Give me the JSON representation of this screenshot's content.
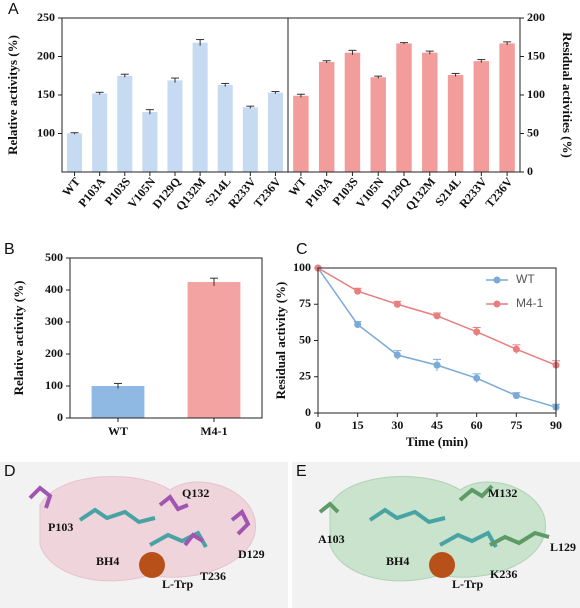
{
  "chart_data": [
    {
      "type": "bar",
      "ylabel": "Relative activitys (%)",
      "y_axis_side": "left",
      "categories": [
        "WT",
        "P103A",
        "P103S",
        "V105N",
        "D129Q",
        "Q132M",
        "S214L",
        "R233V",
        "T236V"
      ],
      "values": [
        100,
        152,
        175,
        128,
        169,
        218,
        163,
        134,
        153
      ],
      "errors": [
        1,
        1.5,
        2,
        3,
        3,
        4,
        2,
        1.5,
        1.5
      ],
      "color": "#c6dbf1",
      "ylim": [
        50,
        250
      ],
      "yticks": [
        100,
        150,
        200,
        250
      ]
    },
    {
      "type": "bar",
      "ylabel": "Residual activities (%)",
      "y_axis_side": "right",
      "categories": [
        "WT",
        "P103A",
        "P103S",
        "V105N",
        "D129Q",
        "Q132M",
        "S214L",
        "R233V",
        "T236V"
      ],
      "values": [
        99,
        143,
        155,
        123,
        167,
        155,
        126,
        144,
        167
      ],
      "errors": [
        2,
        1.5,
        3,
        1.5,
        1,
        2,
        2,
        2,
        2
      ],
      "color": "#f29c9c",
      "ylim": [
        0,
        200
      ],
      "yticks": [
        0,
        50,
        100,
        150,
        200
      ]
    },
    {
      "type": "bar",
      "ylabel": "Relative activity (%)",
      "y_axis_side": "left",
      "categories": [
        "WT",
        "M4-1"
      ],
      "values": [
        100,
        425
      ],
      "errors": [
        8,
        12
      ],
      "colors": [
        "#8fb8e3",
        "#f4a3a3"
      ],
      "ylim": [
        0,
        500
      ],
      "yticks": [
        0,
        100,
        200,
        300,
        400,
        500
      ]
    },
    {
      "type": "line",
      "xlabel": "Time (min)",
      "ylabel": "Residual activity (%)",
      "x": [
        0,
        15,
        30,
        45,
        60,
        75,
        90
      ],
      "series": [
        {
          "name": "WT",
          "color": "#7aaad8",
          "values": [
            100,
            61,
            40,
            33,
            24,
            12,
            4
          ],
          "errors": [
            0,
            2,
            3,
            4,
            3,
            2,
            2
          ]
        },
        {
          "name": "M4-1",
          "color": "#e87e7e",
          "values": [
            100,
            84,
            75,
            67,
            56,
            44,
            33
          ],
          "errors": [
            0,
            2,
            2,
            2,
            3,
            3,
            3
          ]
        }
      ],
      "xlim": [
        0,
        90
      ],
      "xticks": [
        0,
        15,
        30,
        45,
        60,
        75,
        90
      ],
      "ylim": [
        0,
        100
      ],
      "yticks": [
        0,
        25,
        50,
        75,
        100
      ],
      "legend": "upper right"
    }
  ],
  "panel_labels": [
    "A",
    "B",
    "C",
    "D",
    "E"
  ],
  "structures": [
    {
      "labels": [
        "P103",
        "Q132",
        "D129",
        "T236",
        "BH4",
        "L-Trp"
      ]
    },
    {
      "labels": [
        "A103",
        "M132",
        "L129",
        "K236",
        "BH4",
        "L-Trp"
      ]
    }
  ]
}
